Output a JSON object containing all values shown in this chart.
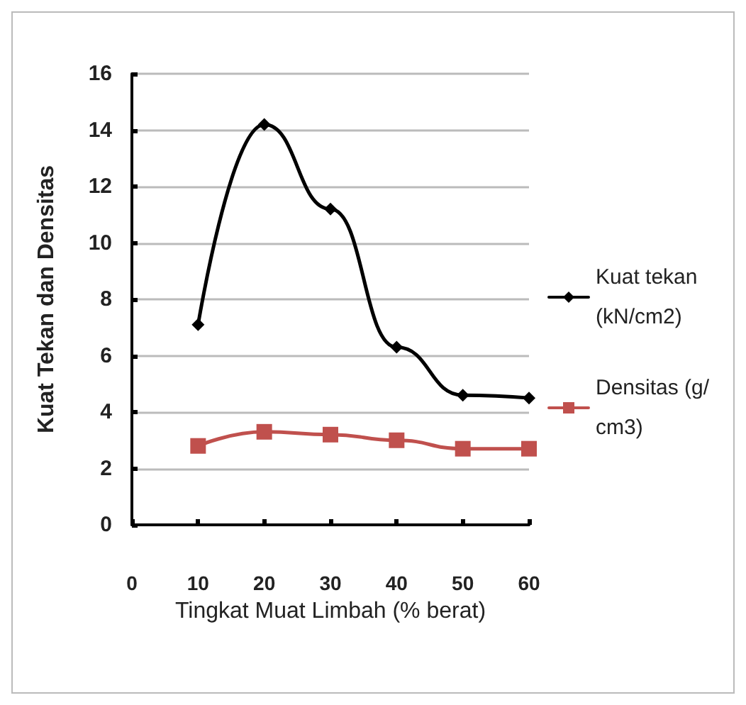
{
  "chart_data": {
    "type": "line",
    "xlabel": "Tingkat Muat Limbah (% berat)",
    "ylabel": "Kuat Tekan dan Densitas",
    "x": [
      10,
      20,
      30,
      40,
      50,
      60
    ],
    "series": [
      {
        "name": "Kuat tekan (kN/cm2)",
        "color": "#000000",
        "marker": "diamond",
        "values": [
          7.1,
          14.2,
          11.2,
          6.3,
          4.6,
          4.5
        ]
      },
      {
        "name": "Densitas (g/cm3)",
        "color": "#c0504d",
        "marker": "square",
        "values": [
          2.8,
          3.3,
          3.2,
          3.0,
          2.7,
          2.7
        ]
      }
    ],
    "xlim": [
      0,
      60
    ],
    "xticks": [
      0,
      10,
      20,
      30,
      40,
      50,
      60
    ],
    "ylim": [
      0,
      16
    ],
    "yticks": [
      0,
      2,
      4,
      6,
      8,
      10,
      12,
      14,
      16
    ],
    "grid": "y",
    "legend": "right",
    "line_style": "solid"
  }
}
